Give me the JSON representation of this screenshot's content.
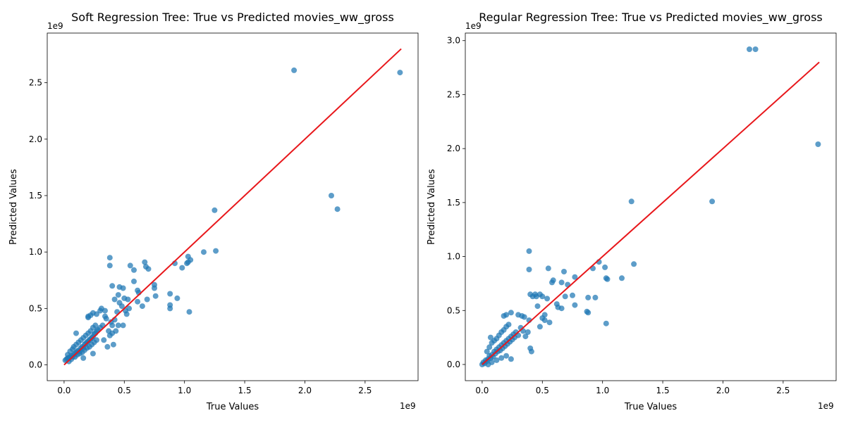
{
  "colors": {
    "points": "#1f77b4",
    "reference_line": "#e8171b"
  },
  "chart_data": [
    {
      "type": "scatter",
      "title": "Soft Regression Tree: True vs Predicted movies_ww_gross",
      "xlabel": "True Values",
      "ylabel": "Predicted Values",
      "x_exponent_label": "1e9",
      "y_exponent_label": "1e9",
      "xlim": [
        -0.14,
        2.94
      ],
      "ylim": [
        -0.14,
        2.94
      ],
      "xticks": [
        0.0,
        0.5,
        1.0,
        1.5,
        2.0,
        2.5
      ],
      "xtick_labels": [
        "0.0",
        "0.5",
        "1.0",
        "1.5",
        "2.0",
        "2.5"
      ],
      "yticks": [
        0.0,
        0.5,
        1.0,
        1.5,
        2.0,
        2.5
      ],
      "ytick_labels": [
        "0.0",
        "0.5",
        "1.0",
        "1.5",
        "2.0",
        "2.5"
      ],
      "reference_line": [
        [
          0,
          0
        ],
        [
          2.8,
          2.8
        ]
      ],
      "points": [
        [
          0.01,
          0.04
        ],
        [
          0.02,
          0.05
        ],
        [
          0.03,
          0.06
        ],
        [
          0.04,
          0.06
        ],
        [
          0.05,
          0.07
        ],
        [
          0.06,
          0.08
        ],
        [
          0.07,
          0.07
        ],
        [
          0.08,
          0.09
        ],
        [
          0.09,
          0.1
        ],
        [
          0.1,
          0.11
        ],
        [
          0.11,
          0.12
        ],
        [
          0.12,
          0.13
        ],
        [
          0.13,
          0.12
        ],
        [
          0.14,
          0.15
        ],
        [
          0.15,
          0.16
        ],
        [
          0.16,
          0.15
        ],
        [
          0.17,
          0.18
        ],
        [
          0.18,
          0.19
        ],
        [
          0.19,
          0.2
        ],
        [
          0.2,
          0.21
        ],
        [
          0.21,
          0.22
        ],
        [
          0.22,
          0.23
        ],
        [
          0.23,
          0.24
        ],
        [
          0.24,
          0.25
        ],
        [
          0.25,
          0.27
        ],
        [
          0.26,
          0.28
        ],
        [
          0.27,
          0.3
        ],
        [
          0.28,
          0.31
        ],
        [
          0.3,
          0.33
        ],
        [
          0.32,
          0.35
        ],
        [
          0.03,
          0.09
        ],
        [
          0.05,
          0.12
        ],
        [
          0.07,
          0.14
        ],
        [
          0.08,
          0.16
        ],
        [
          0.1,
          0.18
        ],
        [
          0.12,
          0.2
        ],
        [
          0.14,
          0.22
        ],
        [
          0.16,
          0.24
        ],
        [
          0.18,
          0.26
        ],
        [
          0.2,
          0.28
        ],
        [
          0.22,
          0.3
        ],
        [
          0.24,
          0.33
        ],
        [
          0.26,
          0.35
        ],
        [
          0.04,
          0.03
        ],
        [
          0.06,
          0.05
        ],
        [
          0.09,
          0.07
        ],
        [
          0.11,
          0.09
        ],
        [
          0.13,
          0.1
        ],
        [
          0.15,
          0.11
        ],
        [
          0.17,
          0.13
        ],
        [
          0.19,
          0.15
        ],
        [
          0.21,
          0.16
        ],
        [
          0.23,
          0.18
        ],
        [
          0.25,
          0.2
        ],
        [
          0.27,
          0.22
        ],
        [
          0.16,
          0.06
        ],
        [
          0.24,
          0.1
        ],
        [
          0.1,
          0.28
        ],
        [
          0.2,
          0.42
        ],
        [
          0.2,
          0.43
        ],
        [
          0.22,
          0.44
        ],
        [
          0.24,
          0.46
        ],
        [
          0.27,
          0.45
        ],
        [
          0.3,
          0.48
        ],
        [
          0.31,
          0.5
        ],
        [
          0.34,
          0.48
        ],
        [
          0.34,
          0.43
        ],
        [
          0.35,
          0.41
        ],
        [
          0.33,
          0.22
        ],
        [
          0.36,
          0.16
        ],
        [
          0.37,
          0.3
        ],
        [
          0.38,
          0.26
        ],
        [
          0.39,
          0.38
        ],
        [
          0.4,
          0.35
        ],
        [
          0.4,
          0.28
        ],
        [
          0.41,
          0.18
        ],
        [
          0.42,
          0.4
        ],
        [
          0.43,
          0.3
        ],
        [
          0.44,
          0.47
        ],
        [
          0.45,
          0.35
        ],
        [
          0.46,
          0.55
        ],
        [
          0.48,
          0.52
        ],
        [
          0.49,
          0.35
        ],
        [
          0.5,
          0.59
        ],
        [
          0.51,
          0.48
        ],
        [
          0.52,
          0.45
        ],
        [
          0.53,
          0.58
        ],
        [
          0.54,
          0.5
        ],
        [
          0.55,
          0.88
        ],
        [
          0.58,
          0.84
        ],
        [
          0.58,
          0.74
        ],
        [
          0.61,
          0.66
        ],
        [
          0.61,
          0.56
        ],
        [
          0.62,
          0.64
        ],
        [
          0.65,
          0.52
        ],
        [
          0.67,
          0.91
        ],
        [
          0.68,
          0.87
        ],
        [
          0.7,
          0.85
        ],
        [
          0.69,
          0.58
        ],
        [
          0.75,
          0.71
        ],
        [
          0.75,
          0.68
        ],
        [
          0.76,
          0.61
        ],
        [
          0.38,
          0.95
        ],
        [
          0.38,
          0.88
        ],
        [
          0.4,
          0.7
        ],
        [
          0.46,
          0.69
        ],
        [
          0.49,
          0.68
        ],
        [
          0.42,
          0.58
        ],
        [
          0.45,
          0.62
        ],
        [
          0.88,
          0.63
        ],
        [
          0.88,
          0.53
        ],
        [
          0.88,
          0.5
        ],
        [
          0.94,
          0.59
        ],
        [
          0.92,
          0.9
        ],
        [
          0.98,
          0.86
        ],
        [
          1.02,
          0.9
        ],
        [
          1.03,
          0.96
        ],
        [
          1.03,
          0.91
        ],
        [
          1.05,
          0.93
        ],
        [
          1.04,
          0.47
        ],
        [
          1.16,
          1.0
        ],
        [
          1.26,
          1.01
        ],
        [
          1.25,
          1.37
        ],
        [
          1.91,
          2.61
        ],
        [
          2.22,
          1.5
        ],
        [
          2.27,
          1.38
        ],
        [
          2.79,
          2.59
        ]
      ]
    },
    {
      "type": "scatter",
      "title": "Regular Regression Tree: True vs Predicted movies_ww_gross",
      "xlabel": "True Values",
      "ylabel": "Predicted Values",
      "x_exponent_label": "1e9",
      "y_exponent_label": "1e9",
      "xlim": [
        -0.14,
        2.94
      ],
      "ylim": [
        -0.15,
        3.07
      ],
      "xticks": [
        0.0,
        0.5,
        1.0,
        1.5,
        2.0,
        2.5
      ],
      "xtick_labels": [
        "0.0",
        "0.5",
        "1.0",
        "1.5",
        "2.0",
        "2.5"
      ],
      "yticks": [
        0.0,
        0.5,
        1.0,
        1.5,
        2.0,
        2.5,
        3.0
      ],
      "ytick_labels": [
        "0.0",
        "0.5",
        "1.0",
        "1.5",
        "2.0",
        "2.5",
        "3.0"
      ],
      "reference_line": [
        [
          0,
          0
        ],
        [
          2.8,
          2.8
        ]
      ],
      "points": [
        [
          0.0,
          0.0
        ],
        [
          0.01,
          0.02
        ],
        [
          0.02,
          0.01
        ],
        [
          0.03,
          0.04
        ],
        [
          0.04,
          0.03
        ],
        [
          0.05,
          0.05
        ],
        [
          0.06,
          0.08
        ],
        [
          0.07,
          0.06
        ],
        [
          0.08,
          0.09
        ],
        [
          0.09,
          0.07
        ],
        [
          0.1,
          0.12
        ],
        [
          0.11,
          0.1
        ],
        [
          0.12,
          0.14
        ],
        [
          0.13,
          0.12
        ],
        [
          0.14,
          0.16
        ],
        [
          0.15,
          0.13
        ],
        [
          0.16,
          0.18
        ],
        [
          0.17,
          0.15
        ],
        [
          0.18,
          0.2
        ],
        [
          0.19,
          0.17
        ],
        [
          0.2,
          0.22
        ],
        [
          0.21,
          0.19
        ],
        [
          0.22,
          0.24
        ],
        [
          0.23,
          0.21
        ],
        [
          0.24,
          0.26
        ],
        [
          0.25,
          0.23
        ],
        [
          0.26,
          0.28
        ],
        [
          0.27,
          0.25
        ],
        [
          0.28,
          0.3
        ],
        [
          0.3,
          0.27
        ],
        [
          0.32,
          0.34
        ],
        [
          0.34,
          0.31
        ],
        [
          0.04,
          0.12
        ],
        [
          0.06,
          0.16
        ],
        [
          0.08,
          0.2
        ],
        [
          0.1,
          0.22
        ],
        [
          0.12,
          0.24
        ],
        [
          0.14,
          0.27
        ],
        [
          0.16,
          0.3
        ],
        [
          0.18,
          0.32
        ],
        [
          0.2,
          0.35
        ],
        [
          0.22,
          0.37
        ],
        [
          0.05,
          0.0
        ],
        [
          0.08,
          0.02
        ],
        [
          0.12,
          0.04
        ],
        [
          0.16,
          0.06
        ],
        [
          0.2,
          0.08
        ],
        [
          0.24,
          0.05
        ],
        [
          0.07,
          0.25
        ],
        [
          0.18,
          0.45
        ],
        [
          0.2,
          0.46
        ],
        [
          0.24,
          0.48
        ],
        [
          0.3,
          0.46
        ],
        [
          0.33,
          0.45
        ],
        [
          0.35,
          0.44
        ],
        [
          0.36,
          0.26
        ],
        [
          0.38,
          0.3
        ],
        [
          0.39,
          0.41
        ],
        [
          0.39,
          1.05
        ],
        [
          0.39,
          0.88
        ],
        [
          0.4,
          0.65
        ],
        [
          0.4,
          0.15
        ],
        [
          0.41,
          0.12
        ],
        [
          0.42,
          0.63
        ],
        [
          0.44,
          0.65
        ],
        [
          0.45,
          0.63
        ],
        [
          0.46,
          0.54
        ],
        [
          0.48,
          0.65
        ],
        [
          0.48,
          0.35
        ],
        [
          0.5,
          0.43
        ],
        [
          0.5,
          0.63
        ],
        [
          0.52,
          0.41
        ],
        [
          0.52,
          0.46
        ],
        [
          0.54,
          0.61
        ],
        [
          0.55,
          0.89
        ],
        [
          0.56,
          0.39
        ],
        [
          0.58,
          0.76
        ],
        [
          0.59,
          0.78
        ],
        [
          0.62,
          0.56
        ],
        [
          0.63,
          0.53
        ],
        [
          0.66,
          0.52
        ],
        [
          0.66,
          0.76
        ],
        [
          0.68,
          0.86
        ],
        [
          0.69,
          0.63
        ],
        [
          0.71,
          0.74
        ],
        [
          0.75,
          0.64
        ],
        [
          0.77,
          0.81
        ],
        [
          0.77,
          0.55
        ],
        [
          0.87,
          0.49
        ],
        [
          0.88,
          0.62
        ],
        [
          0.88,
          0.48
        ],
        [
          0.92,
          0.89
        ],
        [
          0.94,
          0.62
        ],
        [
          0.97,
          0.95
        ],
        [
          1.02,
          0.9
        ],
        [
          1.03,
          0.8
        ],
        [
          1.03,
          0.38
        ],
        [
          1.04,
          0.79
        ],
        [
          1.16,
          0.8
        ],
        [
          1.24,
          1.51
        ],
        [
          1.26,
          0.93
        ],
        [
          1.91,
          1.51
        ],
        [
          2.22,
          2.92
        ],
        [
          2.27,
          2.92
        ],
        [
          2.79,
          2.04
        ]
      ]
    }
  ]
}
